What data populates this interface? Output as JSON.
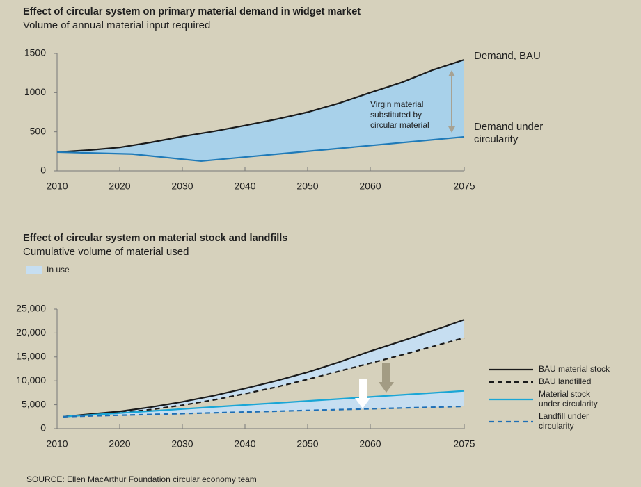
{
  "chart_data": [
    {
      "type": "line",
      "title": "Effect of circular system on primary material demand in widget market",
      "subtitle": "Volume of annual material input required",
      "xlim": [
        2010,
        2075
      ],
      "xticks": [
        2010,
        2020,
        2030,
        2040,
        2050,
        2060,
        2075
      ],
      "ylim": [
        0,
        1500
      ],
      "yticks": [
        0,
        500,
        1000,
        1500
      ],
      "series": [
        {
          "name": "Demand, BAU",
          "color": "#1a1a1a",
          "line_style": "solid",
          "x": [
            2010,
            2015,
            2020,
            2025,
            2030,
            2035,
            2040,
            2045,
            2050,
            2055,
            2060,
            2065,
            2070,
            2075
          ],
          "values": [
            240,
            265,
            300,
            365,
            440,
            505,
            580,
            660,
            750,
            865,
            1000,
            1130,
            1290,
            1420
          ]
        },
        {
          "name": "Demand under circularity",
          "color": "#1f7ab8",
          "line_style": "solid",
          "x": [
            2010,
            2022,
            2033,
            2075
          ],
          "values": [
            240,
            215,
            125,
            435
          ]
        }
      ],
      "area": {
        "color": "#a8d1ea",
        "between": [
          [
            0,
            1
          ]
        ]
      },
      "annotation": "Virgin material substituted by circular material"
    },
    {
      "type": "line",
      "title": "Effect of circular system on material stock and landfills",
      "subtitle": "Cumulative volume of material used",
      "xlim": [
        2010,
        2075
      ],
      "xticks": [
        2010,
        2020,
        2030,
        2040,
        2050,
        2060,
        2075
      ],
      "ylim": [
        0,
        25000
      ],
      "yticks": [
        0,
        {
          "value": 5000,
          "label": "5,000"
        },
        {
          "value": 10000,
          "label": "10,000"
        },
        {
          "value": 15000,
          "label": "15,000"
        },
        {
          "value": 20000,
          "label": "20,000"
        },
        {
          "value": 25000,
          "label": "25,000"
        }
      ],
      "series": [
        {
          "name": "BAU material stock",
          "color": "#1a1a1a",
          "line_style": "solid",
          "x": [
            2011,
            2015,
            2020,
            2025,
            2030,
            2035,
            2040,
            2045,
            2050,
            2055,
            2060,
            2065,
            2070,
            2075
          ],
          "values": [
            2500,
            3000,
            3600,
            4500,
            5600,
            6900,
            8400,
            10000,
            11800,
            13900,
            16200,
            18300,
            20500,
            22800
          ]
        },
        {
          "name": "BAU landfilled",
          "color": "#1a1a1a",
          "line_style": "dashed",
          "x": [
            2011,
            2015,
            2020,
            2025,
            2030,
            2035,
            2040,
            2045,
            2050,
            2055,
            2060,
            2065,
            2070,
            2075
          ],
          "values": [
            2500,
            2800,
            3300,
            4000,
            4900,
            6000,
            7300,
            8700,
            10300,
            12000,
            13700,
            15400,
            17200,
            19000
          ]
        },
        {
          "name": "Material stock under circularity",
          "color": "#1aa6d6",
          "line_style": "solid",
          "x": [
            2011,
            2075
          ],
          "values": [
            2500,
            7900
          ]
        },
        {
          "name": "Landfill under circularity",
          "color": "#1f6fb5",
          "line_style": "dashed",
          "x": [
            2011,
            2075
          ],
          "values": [
            2500,
            4650
          ]
        }
      ],
      "area": {
        "name": "In use",
        "color": "#c6def1",
        "between": [
          [
            0,
            1
          ],
          [
            2,
            3
          ]
        ]
      },
      "legend": "right"
    }
  ],
  "source": "SOURCE: Ellen MacArthur Foundation circular economy team"
}
